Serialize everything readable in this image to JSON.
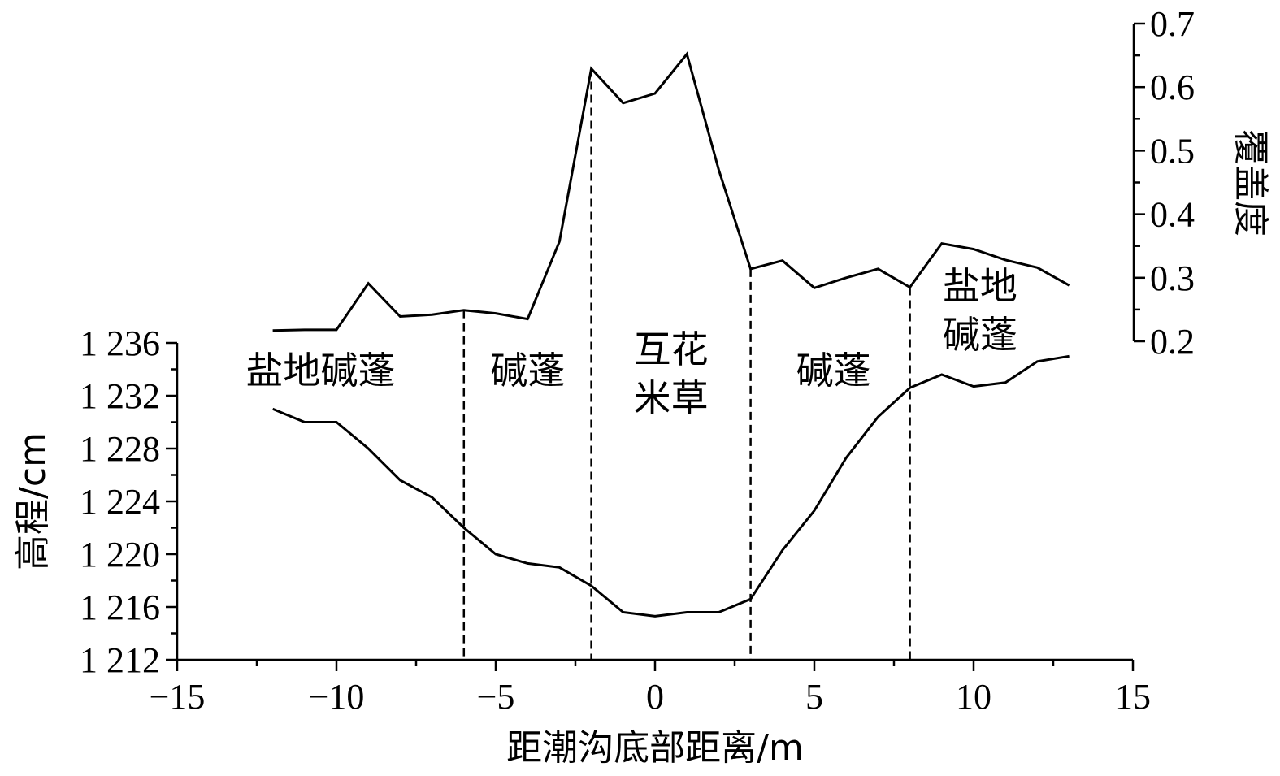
{
  "chart_data": {
    "type": "line",
    "xlabel": "距潮沟底部距离/m",
    "ylabel_left": "高程/cm",
    "ylabel_right": "覆盖度",
    "xlim": [
      -15,
      15
    ],
    "ylim_left": [
      1212,
      1236
    ],
    "ylim_right": [
      0.2,
      0.7
    ],
    "x_ticks": [
      -15,
      -10,
      -5,
      0,
      5,
      10,
      15
    ],
    "x_tick_labels": [
      "−15",
      "−10",
      "−5",
      "0",
      "5",
      "10",
      "15"
    ],
    "y_left_ticks": [
      1212,
      1216,
      1220,
      1224,
      1228,
      1232,
      1236
    ],
    "y_left_tick_labels": [
      "1 212",
      "1 216",
      "1 220",
      "1 224",
      "1 228",
      "1 232",
      "1 236"
    ],
    "y_right_ticks": [
      0.2,
      0.3,
      0.4,
      0.5,
      0.6,
      0.7
    ],
    "y_right_tick_labels": [
      "0.2",
      "0.3",
      "0.4",
      "0.5",
      "0.6",
      "0.7"
    ],
    "series": [
      {
        "axis": "right",
        "x": [
          -12,
          -11,
          -10,
          -9,
          -8,
          -7,
          -6,
          -5,
          -4,
          -3,
          -2,
          -1,
          0,
          1,
          2,
          3,
          4,
          5,
          6,
          7,
          8,
          9,
          10,
          11,
          12,
          13
        ],
        "y": [
          0.217,
          0.218,
          0.218,
          0.291,
          0.239,
          0.242,
          0.249,
          0.244,
          0.235,
          0.357,
          0.629,
          0.575,
          0.59,
          0.652,
          0.47,
          0.314,
          0.327,
          0.284,
          0.3,
          0.314,
          0.285,
          0.354,
          0.345,
          0.328,
          0.316,
          0.288
        ]
      },
      {
        "axis": "left",
        "x": [
          -12,
          -11,
          -10,
          -9,
          -8,
          -7,
          -6,
          -5,
          -4,
          -3,
          -2,
          -1,
          0,
          1,
          2,
          3,
          4,
          5,
          6,
          7,
          8,
          9,
          10,
          11,
          12,
          13
        ],
        "y": [
          1231.0,
          1230.0,
          1230.0,
          1228.0,
          1225.6,
          1224.3,
          1222.0,
          1220.0,
          1219.3,
          1219.0,
          1217.6,
          1215.6,
          1215.3,
          1215.6,
          1215.6,
          1216.6,
          1220.3,
          1223.3,
          1227.3,
          1230.4,
          1232.6,
          1233.6,
          1232.7,
          1233.0,
          1234.6,
          1235.0
        ]
      }
    ],
    "dividers": [
      -6,
      -2,
      3,
      8
    ],
    "zones": [
      {
        "lines": [
          "盐地碱蓬"
        ],
        "x": -10.5
      },
      {
        "lines": [
          "碱蓬"
        ],
        "x": -4.0
      },
      {
        "lines": [
          "互花",
          "米草"
        ],
        "x": 0.5
      },
      {
        "lines": [
          "碱蓬"
        ],
        "x": 5.6
      },
      {
        "lines": [
          "盐地",
          "碱蓬"
        ],
        "x": 10.2
      }
    ]
  }
}
